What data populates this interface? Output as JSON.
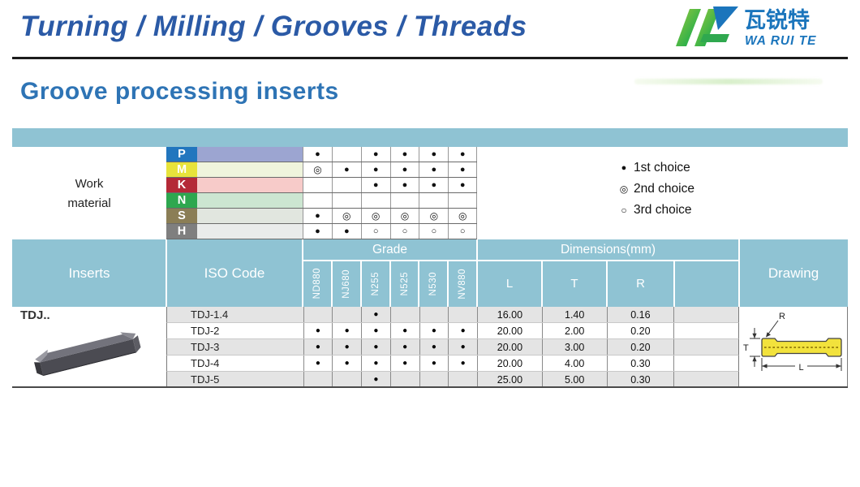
{
  "header": {
    "title": "Turning / Milling / Grooves / Threads",
    "logo": {
      "cn": "瓦锐特",
      "en": "WA RUI TE"
    }
  },
  "page_title": "Groove processing inserts",
  "work_material": {
    "label_line1": "Work",
    "label_line2": "material",
    "rows": [
      {
        "code": "P",
        "label_color": "#2276be",
        "band_color": "#9ca5d1",
        "marks": [
          "●",
          "",
          "●",
          "●",
          "●",
          "●"
        ]
      },
      {
        "code": "M",
        "label_color": "#e7e33b",
        "band_color": "#eff4dc",
        "marks": [
          "◎",
          "●",
          "●",
          "●",
          "●",
          "●"
        ]
      },
      {
        "code": "K",
        "label_color": "#b42937",
        "band_color": "#f7cbc9",
        "marks": [
          "",
          "",
          "●",
          "●",
          "●",
          "●"
        ]
      },
      {
        "code": "N",
        "label_color": "#2ea74f",
        "band_color": "#cce6d1",
        "marks": [
          "",
          "",
          "",
          "",
          "",
          ""
        ]
      },
      {
        "code": "S",
        "label_color": "#8b7e56",
        "band_color": "#e1e6df",
        "marks": [
          "●",
          "◎",
          "◎",
          "◎",
          "◎",
          "◎"
        ]
      },
      {
        "code": "H",
        "label_color": "#7f7f7f",
        "band_color": "#eaeceb",
        "marks": [
          "●",
          "●",
          "○",
          "○",
          "○",
          "○"
        ]
      }
    ]
  },
  "legend": [
    {
      "symbol": "●",
      "label": "1st choice"
    },
    {
      "symbol": "◎",
      "label": "2nd choice"
    },
    {
      "symbol": "○",
      "label": "3rd choice"
    }
  ],
  "table": {
    "headers": {
      "inserts": "Inserts",
      "iso_code": "ISO Code",
      "grade": "Grade",
      "dimensions": "Dimensions(mm)",
      "drawing": "Drawing",
      "dim_cols": [
        "L",
        "T",
        "R",
        ""
      ]
    },
    "grades": [
      "ND880",
      "NJ680",
      "N255",
      "N525",
      "N530",
      "NV880"
    ],
    "series_label": "TDJ..",
    "rows": [
      {
        "iso": "TDJ-1.4",
        "marks": [
          "",
          "",
          "●",
          "",
          "",
          ""
        ],
        "L": "16.00",
        "T": "1.40",
        "R": "0.16"
      },
      {
        "iso": "TDJ-2",
        "marks": [
          "●",
          "●",
          "●",
          "●",
          "●",
          "●"
        ],
        "L": "20.00",
        "T": "2.00",
        "R": "0.20"
      },
      {
        "iso": "TDJ-3",
        "marks": [
          "●",
          "●",
          "●",
          "●",
          "●",
          "●"
        ],
        "L": "20.00",
        "T": "3.00",
        "R": "0.20"
      },
      {
        "iso": "TDJ-4",
        "marks": [
          "●",
          "●",
          "●",
          "●",
          "●",
          "●"
        ],
        "L": "20.00",
        "T": "4.00",
        "R": "0.30"
      },
      {
        "iso": "TDJ-5",
        "marks": [
          "",
          "",
          "●",
          "",
          "",
          ""
        ],
        "L": "25.00",
        "T": "5.00",
        "R": "0.30"
      }
    ]
  },
  "drawing_labels": {
    "R": "R",
    "T": "T",
    "L": "L"
  },
  "colors": {
    "brand_blue": "#2b5aa6",
    "title_blue": "#2e74b5",
    "table_teal": "#8fc3d3",
    "row_alt_gray": "#e4e4e4",
    "logo_blue": "#1b75bc",
    "logo_green_light": "#9aca3c",
    "logo_green_dark": "#00a550",
    "insert_yellow": "#f2e23c"
  }
}
